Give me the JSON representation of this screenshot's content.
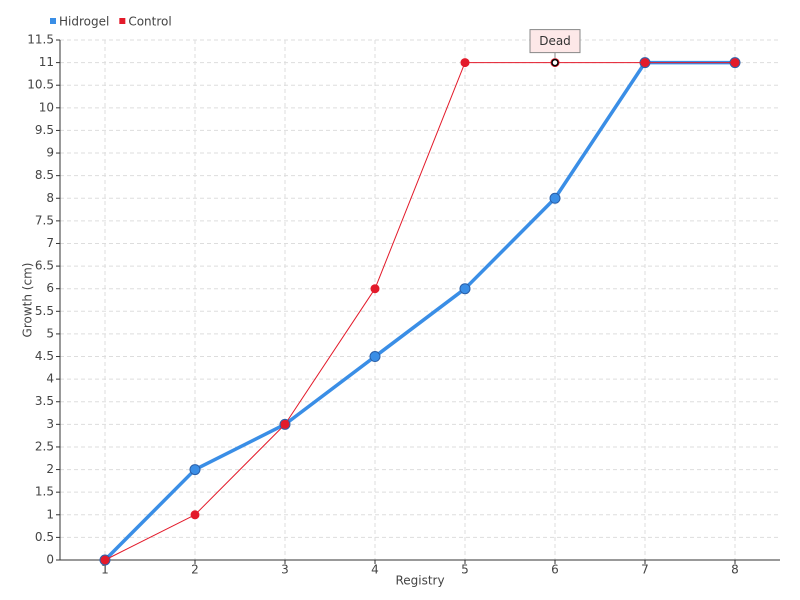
{
  "chart_data": {
    "type": "line",
    "x_label": "Registry",
    "y_label": "Growth (cm)",
    "x": [
      1,
      2,
      3,
      4,
      5,
      6,
      7,
      8
    ],
    "series": [
      {
        "name": "Hidrogel",
        "color": "#3a8ee6",
        "values": [
          0,
          2,
          3,
          4.5,
          6,
          8,
          11,
          11
        ]
      },
      {
        "name": "Control",
        "color": "#e31a2a",
        "values": [
          0,
          1,
          3,
          6,
          11,
          11,
          11,
          11
        ]
      }
    ],
    "xlim": [
      0.5,
      8.5
    ],
    "xticks": [
      1,
      2,
      3,
      4,
      5,
      6,
      7,
      8
    ],
    "ylim": [
      0,
      11.5
    ],
    "yticks": [
      0,
      0.5,
      1,
      1.5,
      2,
      2.5,
      3,
      3.5,
      4,
      4.5,
      5,
      5.5,
      6,
      6.5,
      7,
      7.5,
      8,
      8.5,
      9,
      9.5,
      10,
      10.5,
      11,
      11.5
    ],
    "grid": true,
    "legend": "top-left",
    "annotations": [
      {
        "text": "Dead",
        "x": 6,
        "y": 11
      }
    ]
  }
}
